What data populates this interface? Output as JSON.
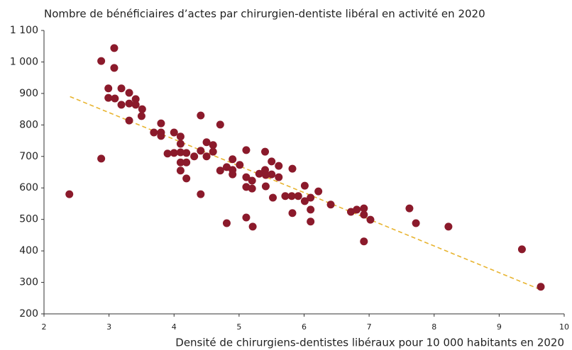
{
  "chart_data": {
    "type": "scatter",
    "title": "Nombre de bénéficiaires d’actes par chirurgien-dentiste libéral en activité en 2020",
    "x_label": "Densité de chirurgiens-dentistes libéraux pour 10 000 habitants en 2020",
    "xlim": [
      2,
      10
    ],
    "xticks": [
      2,
      3,
      4,
      5,
      6,
      7,
      8,
      9,
      10
    ],
    "ylim": [
      200,
      1100
    ],
    "yticks": [
      200,
      300,
      400,
      500,
      600,
      700,
      800,
      900,
      {
        "value": 1000,
        "label": "1 000"
      },
      {
        "value": 1100,
        "label": "1 100"
      }
    ],
    "series": [
      {
        "color": "#8b1a2b",
        "x": [
          2.39,
          2.88,
          2.88,
          2.99,
          2.99,
          3.08,
          3.08,
          3.09,
          3.19,
          3.19,
          3.31,
          3.31,
          3.31,
          3.41,
          3.41,
          3.51,
          3.5,
          3.69,
          3.8,
          3.8,
          3.8,
          3.9,
          4.0,
          4.0,
          4.1,
          4.1,
          4.1,
          4.1,
          4.1,
          4.19,
          4.19,
          4.19,
          4.31,
          4.41,
          4.41,
          4.41,
          4.5,
          4.5,
          4.6,
          4.6,
          4.71,
          4.71,
          4.81,
          4.81,
          4.9,
          4.9,
          4.9,
          5.01,
          5.11,
          5.11,
          5.11,
          5.11,
          5.2,
          5.2,
          5.21,
          5.31,
          5.4,
          5.4,
          5.41,
          5.41,
          5.5,
          5.5,
          5.52,
          5.61,
          5.61,
          5.71,
          5.81,
          5.82,
          5.82,
          5.91,
          6.01,
          6.01,
          6.1,
          6.1,
          6.1,
          6.22,
          6.41,
          6.72,
          6.81,
          6.92,
          6.92,
          6.92,
          7.02,
          7.62,
          7.72,
          8.22,
          9.35,
          9.64
        ],
        "values": [
          580,
          1003,
          693,
          916,
          886,
          1044,
          981,
          884,
          916,
          864,
          902,
          868,
          814,
          882,
          864,
          850,
          828,
          776,
          805,
          776,
          765,
          709,
          776,
          711,
          763,
          740,
          713,
          681,
          655,
          711,
          681,
          630,
          700,
          830,
          718,
          580,
          745,
          700,
          736,
          715,
          801,
          655,
          488,
          666,
          691,
          657,
          643,
          673,
          720,
          634,
          603,
          506,
          623,
          598,
          477,
          645,
          715,
          657,
          641,
          605,
          684,
          643,
          569,
          670,
          634,
          574,
          574,
          661,
          520,
          574,
          607,
          558,
          569,
          531,
          493,
          589,
          547,
          524,
          531,
          535,
          515,
          430,
          499,
          535,
          488,
          477,
          405,
          286
        ]
      }
    ],
    "trendline": {
      "color": "#e8b430",
      "x": [
        2.4,
        9.6
      ],
      "values": [
        890,
        280
      ]
    }
  }
}
